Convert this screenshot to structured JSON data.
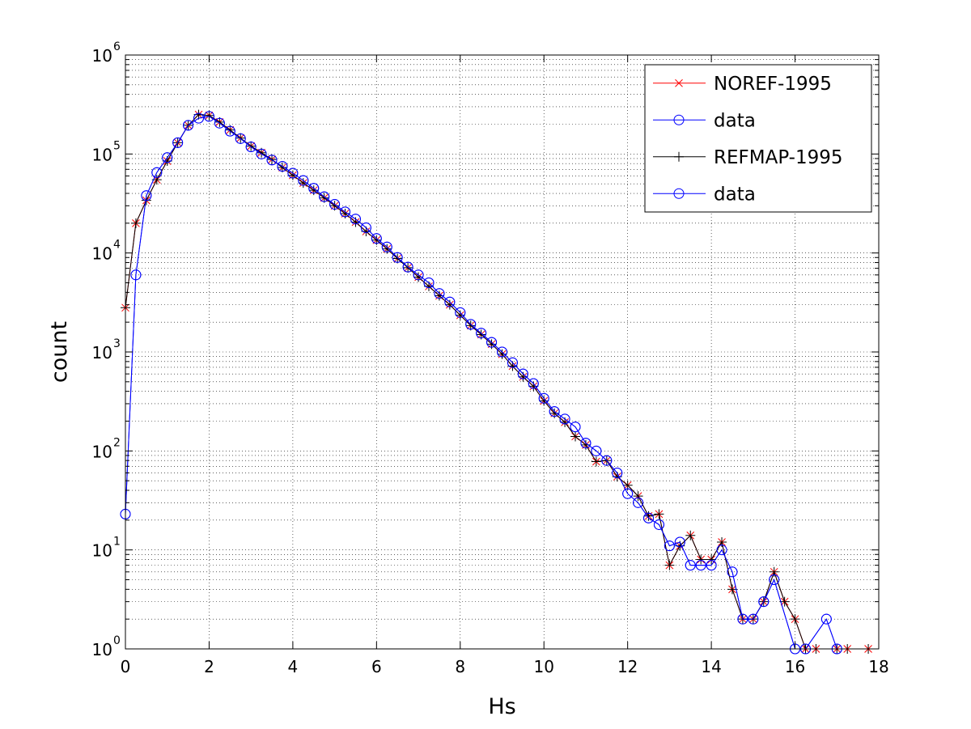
{
  "chart_data": {
    "type": "line",
    "title": "",
    "xlabel": "Hs",
    "ylabel": "count",
    "xlim": [
      0,
      18
    ],
    "ylim": [
      1,
      1000000
    ],
    "yscale": "log",
    "grid": true,
    "legend_position": "top-right",
    "x_ticks": [
      "0",
      "2",
      "4",
      "6",
      "8",
      "10",
      "12",
      "14",
      "16",
      "18"
    ],
    "y_tick_exponents": [
      "0",
      "1",
      "2",
      "3",
      "4",
      "5",
      "6"
    ],
    "y_tick_base": "10",
    "series": [
      {
        "name": "NOREF-1995",
        "color": "#ff0000",
        "marker": "x",
        "x": [
          0,
          0.25,
          0.5,
          0.75,
          1.0,
          1.25,
          1.5,
          1.75,
          2.0,
          2.25,
          2.5,
          2.75,
          3.0,
          3.25,
          3.5,
          3.75,
          4.0,
          4.25,
          4.5,
          4.75,
          5.0,
          5.25,
          5.5,
          5.75,
          6.0,
          6.25,
          6.5,
          6.75,
          7.0,
          7.25,
          7.5,
          7.75,
          8.0,
          8.25,
          8.5,
          8.75,
          9.0,
          9.25,
          9.5,
          9.75,
          10.0,
          10.25,
          10.5,
          10.75,
          11.0,
          11.25,
          11.5,
          11.75,
          12.0,
          12.25,
          12.5,
          12.75,
          13.0,
          13.25,
          13.5,
          13.75,
          14.0,
          14.25,
          14.5,
          14.75,
          15.0,
          15.25,
          15.5,
          15.75,
          16.0,
          16.25,
          16.5,
          17.0,
          17.25,
          17.75
        ],
        "y": [
          2800,
          20000,
          34000,
          55000,
          85000,
          130000,
          195000,
          250000,
          245000,
          210000,
          175000,
          145000,
          120000,
          103000,
          88000,
          73000,
          61000,
          51000,
          43000,
          36000,
          30000,
          25000,
          20500,
          16500,
          13500,
          11000,
          8800,
          7100,
          5700,
          4600,
          3700,
          3000,
          2350,
          1850,
          1500,
          1200,
          950,
          720,
          560,
          450,
          320,
          240,
          195,
          140,
          115,
          78,
          80,
          55,
          45,
          35,
          22,
          23,
          7,
          11,
          14,
          8,
          8,
          12,
          4,
          2,
          2,
          3,
          6,
          3,
          2,
          1,
          1,
          1,
          1,
          1
        ]
      },
      {
        "name": "data",
        "color": "#0000ff",
        "marker": "o",
        "x": [
          0,
          0.25,
          0.5,
          0.75,
          1.0,
          1.25,
          1.5,
          1.75,
          2.0,
          2.25,
          2.5,
          2.75,
          3.0,
          3.25,
          3.5,
          3.75,
          4.0,
          4.25,
          4.5,
          4.75,
          5.0,
          5.25,
          5.5,
          5.75,
          6.0,
          6.25,
          6.5,
          6.75,
          7.0,
          7.25,
          7.5,
          7.75,
          8.0,
          8.25,
          8.5,
          8.75,
          9.0,
          9.25,
          9.5,
          9.75,
          10.0,
          10.25,
          10.5,
          10.75,
          11.0,
          11.25,
          11.5,
          11.75,
          12.0,
          12.25,
          12.5,
          12.75,
          13.0,
          13.25,
          13.5,
          13.75,
          14.0,
          14.25,
          14.5,
          14.75,
          15.0,
          15.25,
          15.5,
          16.0,
          16.25,
          16.75,
          17.0
        ],
        "y": [
          23,
          6000,
          38000,
          65000,
          92000,
          130000,
          195000,
          230000,
          240000,
          205000,
          170000,
          143000,
          118000,
          100000,
          87000,
          75000,
          64000,
          54000,
          45000,
          37000,
          31000,
          26000,
          22000,
          18000,
          14000,
          11500,
          9000,
          7200,
          6000,
          5000,
          3900,
          3200,
          2500,
          1900,
          1550,
          1250,
          1000,
          780,
          600,
          480,
          340,
          250,
          210,
          175,
          120,
          100,
          80,
          60,
          37,
          30,
          21,
          18,
          11,
          12,
          7,
          7,
          7,
          10,
          6,
          2,
          2,
          3,
          5,
          1,
          1,
          2,
          1
        ]
      },
      {
        "name": "REFMAP-1995",
        "color": "#000000",
        "marker": "+",
        "x": [
          0,
          0.25,
          0.5,
          0.75,
          1.0,
          1.25,
          1.5,
          1.75,
          2.0,
          2.25,
          2.5,
          2.75,
          3.0,
          3.25,
          3.5,
          3.75,
          4.0,
          4.25,
          4.5,
          4.75,
          5.0,
          5.25,
          5.5,
          5.75,
          6.0,
          6.25,
          6.5,
          6.75,
          7.0,
          7.25,
          7.5,
          7.75,
          8.0,
          8.25,
          8.5,
          8.75,
          9.0,
          9.25,
          9.5,
          9.75,
          10.0,
          10.25,
          10.5,
          10.75,
          11.0,
          11.25,
          11.5,
          11.75,
          12.0,
          12.25,
          12.5,
          12.75,
          13.0,
          13.25,
          13.5,
          13.75,
          14.0,
          14.25,
          14.5,
          14.75,
          15.0,
          15.25,
          15.5,
          15.75,
          16.0,
          16.25,
          16.5,
          17.0,
          17.25,
          17.75
        ],
        "y": [
          2800,
          20000,
          34000,
          55000,
          85000,
          130000,
          195000,
          250000,
          245000,
          210000,
          175000,
          145000,
          120000,
          103000,
          88000,
          73000,
          61000,
          51000,
          43000,
          36000,
          30000,
          25000,
          20500,
          16500,
          13500,
          11000,
          8800,
          7100,
          5700,
          4600,
          3700,
          3000,
          2350,
          1850,
          1500,
          1200,
          950,
          720,
          560,
          450,
          320,
          240,
          195,
          140,
          115,
          78,
          80,
          55,
          45,
          35,
          22,
          23,
          7,
          11,
          14,
          8,
          8,
          12,
          4,
          2,
          2,
          3,
          6,
          3,
          2,
          1,
          1,
          1,
          1,
          1
        ]
      },
      {
        "name": "data",
        "color": "#0000ff",
        "marker": "o",
        "x": [
          0,
          0.25,
          0.5,
          0.75,
          1.0,
          1.25,
          1.5,
          1.75,
          2.0,
          2.25,
          2.5,
          2.75,
          3.0,
          3.25,
          3.5,
          3.75,
          4.0,
          4.25,
          4.5,
          4.75,
          5.0,
          5.25,
          5.5,
          5.75,
          6.0,
          6.25,
          6.5,
          6.75,
          7.0,
          7.25,
          7.5,
          7.75,
          8.0,
          8.25,
          8.5,
          8.75,
          9.0,
          9.25,
          9.5,
          9.75,
          10.0,
          10.25,
          10.5,
          10.75,
          11.0,
          11.25,
          11.5,
          11.75,
          12.0,
          12.25,
          12.5,
          12.75,
          13.0,
          13.25,
          13.5,
          13.75,
          14.0,
          14.25,
          14.5,
          14.75,
          15.0,
          15.25,
          15.5,
          16.0,
          16.25,
          16.75,
          17.0
        ],
        "y": [
          23,
          6000,
          38000,
          65000,
          92000,
          130000,
          195000,
          230000,
          240000,
          205000,
          170000,
          143000,
          118000,
          100000,
          87000,
          75000,
          64000,
          54000,
          45000,
          37000,
          31000,
          26000,
          22000,
          18000,
          14000,
          11500,
          9000,
          7200,
          6000,
          5000,
          3900,
          3200,
          2500,
          1900,
          1550,
          1250,
          1000,
          780,
          600,
          480,
          340,
          250,
          210,
          175,
          120,
          100,
          80,
          60,
          37,
          30,
          21,
          18,
          11,
          12,
          7,
          7,
          7,
          10,
          6,
          2,
          2,
          3,
          5,
          1,
          1,
          2,
          1
        ]
      }
    ]
  }
}
